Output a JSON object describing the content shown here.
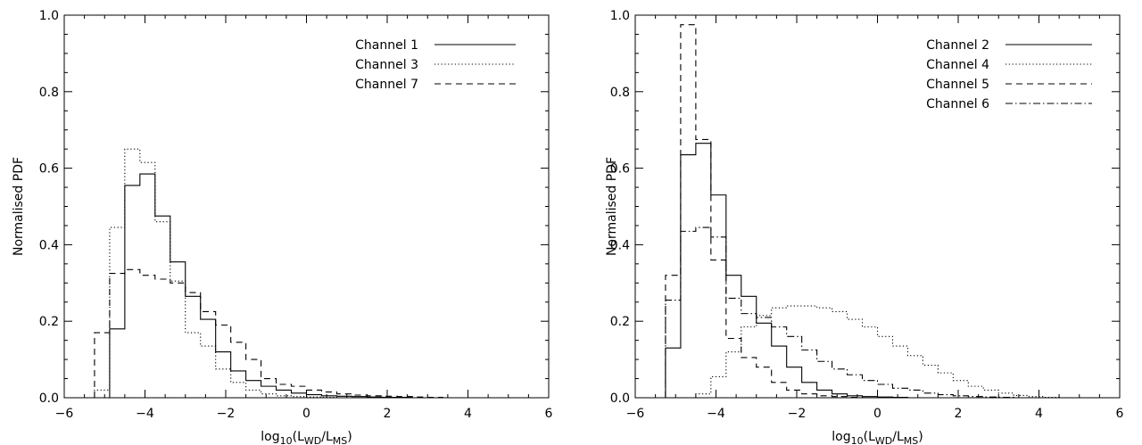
{
  "chart_data": [
    {
      "type": "step",
      "title": "",
      "xlabel_main": "log",
      "xlabel_sub": "10",
      "xlabel_rest": "(L",
      "xlabel_sub2": "WD",
      "xlabel_mid": "/L",
      "xlabel_sub3": "MS",
      "xlabel_end": ")",
      "ylabel": "Normalised PDF",
      "xlim": [
        -6,
        6
      ],
      "ylim": [
        0,
        1.0
      ],
      "xticks": [
        -6,
        -4,
        -2,
        0,
        2,
        4,
        6
      ],
      "xtick_labels": [
        "−6",
        "−4",
        "−2",
        "0",
        "2",
        "4",
        "6"
      ],
      "yticks": [
        0,
        0.2,
        0.4,
        0.6,
        0.8,
        1.0
      ],
      "ytick_labels": [
        "0.0",
        "0.2",
        "0.4",
        "0.6",
        "0.8",
        "1.0"
      ],
      "bin_width": 0.375,
      "legend_position": "top-right",
      "series": [
        {
          "name": "Channel 1",
          "style": "solid",
          "start": -4.875,
          "values": [
            0.18,
            0.555,
            0.585,
            0.475,
            0.355,
            0.265,
            0.205,
            0.12,
            0.07,
            0.045,
            0.03,
            0.02,
            0.012,
            0.008,
            0.005,
            0.004,
            0.003,
            0.002,
            0.001,
            0.001,
            0.0
          ]
        },
        {
          "name": "Channel 3",
          "style": "dotted",
          "start": -5.25,
          "values": [
            0.02,
            0.445,
            0.65,
            0.615,
            0.46,
            0.305,
            0.17,
            0.135,
            0.075,
            0.04,
            0.02,
            0.01,
            0.005,
            0.003,
            0.002,
            0.001,
            0.0
          ]
        },
        {
          "name": "Channel 7",
          "style": "dashed",
          "start": -5.25,
          "values": [
            0.17,
            0.325,
            0.335,
            0.32,
            0.31,
            0.3,
            0.275,
            0.225,
            0.19,
            0.145,
            0.1,
            0.05,
            0.035,
            0.03,
            0.02,
            0.015,
            0.01,
            0.007,
            0.005,
            0.004,
            0.003,
            0.002,
            0.001,
            0.0
          ]
        }
      ]
    },
    {
      "type": "step",
      "title": "",
      "xlabel_main": "log",
      "xlabel_sub": "10",
      "xlabel_rest": "(L",
      "xlabel_sub2": "WD",
      "xlabel_mid": "/L",
      "xlabel_sub3": "MS",
      "xlabel_end": ")",
      "ylabel": "Normalised PDF",
      "xlim": [
        -6,
        6
      ],
      "ylim": [
        0,
        1.0
      ],
      "xticks": [
        -6,
        -4,
        -2,
        0,
        2,
        4,
        6
      ],
      "xtick_labels": [
        "−6",
        "−4",
        "−2",
        "0",
        "2",
        "4",
        "6"
      ],
      "yticks": [
        0,
        0.2,
        0.4,
        0.6,
        0.8,
        1.0
      ],
      "ytick_labels": [
        "0.0",
        "0.2",
        "0.4",
        "0.6",
        "0.8",
        "1.0"
      ],
      "bin_width": 0.375,
      "legend_position": "top-right",
      "series": [
        {
          "name": "Channel 2",
          "style": "solid",
          "start": -5.25,
          "values": [
            0.13,
            0.635,
            0.665,
            0.53,
            0.32,
            0.265,
            0.195,
            0.135,
            0.08,
            0.04,
            0.02,
            0.01,
            0.005,
            0.003,
            0.002,
            0.001,
            0.0
          ]
        },
        {
          "name": "Channel 4",
          "style": "dotted",
          "start": -4.5,
          "values": [
            0.01,
            0.055,
            0.12,
            0.185,
            0.215,
            0.235,
            0.24,
            0.24,
            0.235,
            0.225,
            0.205,
            0.185,
            0.16,
            0.135,
            0.11,
            0.085,
            0.065,
            0.045,
            0.03,
            0.02,
            0.012,
            0.006,
            0.003,
            0.001,
            0.0
          ]
        },
        {
          "name": "Channel 5",
          "style": "dashed",
          "start": -5.25,
          "values": [
            0.32,
            0.975,
            0.675,
            0.36,
            0.155,
            0.105,
            0.08,
            0.04,
            0.02,
            0.01,
            0.005,
            0.003,
            0.001,
            0.0
          ]
        },
        {
          "name": "Channel 6",
          "style": "dashdot",
          "start": -5.25,
          "values": [
            0.255,
            0.435,
            0.445,
            0.42,
            0.26,
            0.22,
            0.21,
            0.185,
            0.16,
            0.125,
            0.095,
            0.075,
            0.06,
            0.045,
            0.035,
            0.025,
            0.02,
            0.012,
            0.008,
            0.005,
            0.003,
            0.002,
            0.001,
            0.0
          ]
        }
      ]
    }
  ]
}
